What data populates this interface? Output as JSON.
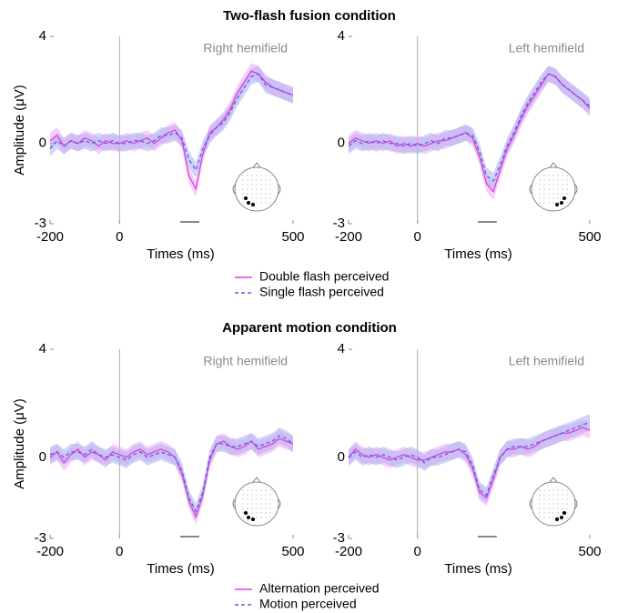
{
  "sections": [
    {
      "title": "Two-flash fusion condition"
    },
    {
      "title": "Apparent motion condition"
    }
  ],
  "chart_data": [
    {
      "type": "line",
      "title": "Right hemifield",
      "ylabel": "Amplitude (μV)",
      "xlabel": "Times (ms)",
      "x": [
        -200,
        -180,
        -160,
        -140,
        -120,
        -100,
        -80,
        -60,
        -40,
        -20,
        0,
        20,
        40,
        60,
        80,
        100,
        120,
        140,
        160,
        180,
        200,
        220,
        240,
        260,
        280,
        300,
        320,
        340,
        360,
        380,
        400,
        420,
        440,
        460,
        480,
        500
      ],
      "xlim": [
        -200,
        500
      ],
      "ylim": [
        -3,
        4
      ],
      "xticks": [
        -200,
        0,
        500
      ],
      "yticks": [
        -3,
        0,
        4
      ],
      "vline": 0,
      "window": [
        175,
        230
      ],
      "series": [
        {
          "name": "Double flash perceived",
          "color": "#dd3fe0",
          "band_color": "#f2a6f2",
          "dash": false,
          "band": 0.3,
          "values": [
            0.1,
            0.3,
            -0.1,
            0.1,
            0.0,
            0.2,
            0.1,
            -0.1,
            0.1,
            0.0,
            0.0,
            0.1,
            0.0,
            0.1,
            0.2,
            0.0,
            0.2,
            0.4,
            0.5,
            0.1,
            -1.2,
            -1.7,
            -0.4,
            0.4,
            0.6,
            0.9,
            1.3,
            1.9,
            2.3,
            2.7,
            2.6,
            2.3,
            2.1,
            2.0,
            1.9,
            1.8
          ]
        },
        {
          "name": "Single flash perceived",
          "color": "#5a5fe0",
          "band_color": "#a9b0f0",
          "dash": true,
          "band": 0.3,
          "values": [
            -0.2,
            0.1,
            -0.1,
            0.1,
            0.0,
            0.1,
            0.0,
            0.1,
            0.0,
            0.1,
            0.0,
            0.0,
            0.1,
            0.1,
            0.0,
            0.1,
            0.3,
            0.3,
            0.4,
            0.2,
            -0.6,
            -1.0,
            -0.2,
            0.3,
            0.6,
            0.8,
            1.2,
            1.7,
            2.1,
            2.5,
            2.6,
            2.2,
            2.1,
            2.0,
            1.9,
            1.8
          ]
        }
      ]
    },
    {
      "type": "line",
      "title": "Left hemifield",
      "xlabel": "Times (ms)",
      "x": [
        -200,
        -180,
        -160,
        -140,
        -120,
        -100,
        -80,
        -60,
        -40,
        -20,
        0,
        20,
        40,
        60,
        80,
        100,
        120,
        140,
        160,
        180,
        200,
        220,
        240,
        260,
        280,
        300,
        320,
        340,
        360,
        380,
        400,
        420,
        440,
        460,
        480,
        500
      ],
      "xlim": [
        -200,
        500
      ],
      "ylim": [
        -3,
        4
      ],
      "xticks": [
        -200,
        0,
        500
      ],
      "yticks": [
        -3,
        0,
        4
      ],
      "vline": 0,
      "window": [
        175,
        230
      ],
      "series": [
        {
          "name": "Double flash perceived",
          "color": "#dd3fe0",
          "band_color": "#f2a6f2",
          "dash": false,
          "band": 0.3,
          "values": [
            0.0,
            0.2,
            0.1,
            0.0,
            0.1,
            0.0,
            0.1,
            -0.1,
            0.0,
            -0.1,
            0.0,
            -0.1,
            0.0,
            0.1,
            0.1,
            0.2,
            0.3,
            0.4,
            0.2,
            -0.5,
            -1.5,
            -1.8,
            -1.0,
            -0.2,
            0.3,
            0.9,
            1.4,
            1.8,
            2.2,
            2.6,
            2.5,
            2.2,
            2.0,
            1.8,
            1.6,
            1.3
          ]
        },
        {
          "name": "Single flash perceived",
          "color": "#5a5fe0",
          "band_color": "#a9b0f0",
          "dash": true,
          "band": 0.3,
          "values": [
            -0.1,
            0.1,
            0.0,
            0.1,
            0.0,
            0.1,
            0.0,
            0.0,
            -0.1,
            0.0,
            -0.1,
            0.0,
            0.1,
            0.0,
            0.2,
            0.2,
            0.3,
            0.4,
            0.3,
            -0.3,
            -1.2,
            -1.4,
            -0.8,
            -0.1,
            0.4,
            1.0,
            1.5,
            1.9,
            2.3,
            2.6,
            2.5,
            2.2,
            2.0,
            1.8,
            1.6,
            1.4
          ]
        }
      ]
    },
    {
      "type": "line",
      "title": "Right hemifield",
      "ylabel": "Amplitude (μV)",
      "xlabel": "Times (ms)",
      "x": [
        -200,
        -180,
        -160,
        -140,
        -120,
        -100,
        -80,
        -60,
        -40,
        -20,
        0,
        20,
        40,
        60,
        80,
        100,
        120,
        140,
        160,
        180,
        200,
        220,
        240,
        260,
        280,
        300,
        320,
        340,
        360,
        380,
        400,
        420,
        440,
        460,
        480,
        500
      ],
      "xlim": [
        -200,
        500
      ],
      "ylim": [
        -3,
        4
      ],
      "xticks": [
        -200,
        0,
        500
      ],
      "yticks": [
        -3,
        0,
        4
      ],
      "vline": 0,
      "window": [
        175,
        230
      ],
      "series": [
        {
          "name": "Alternation perceived",
          "color": "#dd3fe0",
          "band_color": "#f2a6f2",
          "dash": false,
          "band": 0.3,
          "values": [
            0.0,
            0.2,
            -0.2,
            0.1,
            0.3,
            0.0,
            0.2,
            0.1,
            -0.1,
            0.2,
            0.1,
            0.0,
            0.2,
            0.3,
            0.1,
            0.2,
            0.3,
            0.2,
            0.0,
            -0.6,
            -1.6,
            -2.2,
            -1.4,
            -0.1,
            0.5,
            0.6,
            0.4,
            0.3,
            0.4,
            0.6,
            0.3,
            0.4,
            0.5,
            0.7,
            0.6,
            0.5
          ]
        },
        {
          "name": "Motion perceived",
          "color": "#5a5fe0",
          "band_color": "#a9b0f0",
          "dash": true,
          "band": 0.3,
          "values": [
            0.1,
            0.2,
            0.0,
            0.2,
            0.2,
            0.1,
            0.3,
            0.1,
            0.0,
            0.1,
            0.0,
            -0.1,
            0.1,
            0.2,
            0.0,
            0.1,
            0.2,
            0.1,
            0.0,
            -0.5,
            -1.5,
            -2.0,
            -1.3,
            0.0,
            0.5,
            0.5,
            0.4,
            0.4,
            0.5,
            0.6,
            0.4,
            0.5,
            0.6,
            0.8,
            0.7,
            0.5
          ]
        }
      ]
    },
    {
      "type": "line",
      "title": "Left hemifield",
      "xlabel": "Times (ms)",
      "x": [
        -200,
        -180,
        -160,
        -140,
        -120,
        -100,
        -80,
        -60,
        -40,
        -20,
        0,
        20,
        40,
        60,
        80,
        100,
        120,
        140,
        160,
        180,
        200,
        220,
        240,
        260,
        280,
        300,
        320,
        340,
        360,
        380,
        400,
        420,
        440,
        460,
        480,
        500
      ],
      "xlim": [
        -200,
        500
      ],
      "ylim": [
        -3,
        4
      ],
      "xticks": [
        -200,
        0,
        500
      ],
      "yticks": [
        -3,
        0,
        4
      ],
      "vline": 0,
      "window": [
        175,
        230
      ],
      "series": [
        {
          "name": "Alternation perceived",
          "color": "#dd3fe0",
          "band_color": "#f2a6f2",
          "dash": false,
          "band": 0.3,
          "values": [
            0.0,
            0.3,
            0.1,
            0.0,
            0.1,
            0.0,
            -0.1,
            0.0,
            0.1,
            0.0,
            -0.1,
            -0.1,
            0.0,
            0.1,
            0.2,
            0.2,
            0.3,
            0.1,
            -0.4,
            -1.3,
            -1.5,
            -0.8,
            0.0,
            0.3,
            0.3,
            0.4,
            0.3,
            0.4,
            0.6,
            0.7,
            0.8,
            0.9,
            0.9,
            1.0,
            1.1,
            1.0
          ]
        },
        {
          "name": "Motion perceived",
          "color": "#5a5fe0",
          "band_color": "#a9b0f0",
          "dash": true,
          "band": 0.3,
          "values": [
            0.0,
            0.2,
            0.0,
            0.1,
            0.0,
            0.1,
            0.0,
            -0.1,
            0.0,
            0.1,
            0.0,
            -0.2,
            0.0,
            0.0,
            0.1,
            0.2,
            0.3,
            0.2,
            -0.3,
            -1.2,
            -1.4,
            -0.7,
            0.0,
            0.3,
            0.4,
            0.4,
            0.4,
            0.5,
            0.6,
            0.7,
            0.8,
            0.9,
            1.0,
            1.1,
            1.2,
            1.3
          ]
        }
      ]
    }
  ]
}
